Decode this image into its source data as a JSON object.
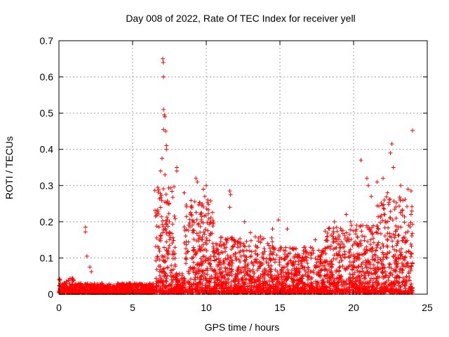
{
  "chart_data": {
    "type": "scatter",
    "title": "Day 008 of 2022, Rate Of TEC Index for receiver yell",
    "xlabel": "GPS time / hours",
    "ylabel": "ROTI / TECUs",
    "xlim": [
      0,
      25
    ],
    "ylim": [
      0,
      0.7
    ],
    "xticks": [
      "0",
      "5",
      "10",
      "15",
      "20",
      "25"
    ],
    "yticks": [
      "0",
      "0.1",
      "0.2",
      "0.3",
      "0.4",
      "0.5",
      "0.6",
      "0.7"
    ],
    "grid": true,
    "marker": "plus",
    "color": "#ff0000",
    "series": [
      {
        "points": [
          [
            1.8,
            0.185
          ],
          [
            1.8,
            0.172
          ],
          [
            1.9,
            0.105
          ],
          [
            2.1,
            0.075
          ],
          [
            2.2,
            0.062
          ],
          [
            6.9,
            0.34
          ],
          [
            7.0,
            0.375
          ],
          [
            7.05,
            0.65
          ],
          [
            7.08,
            0.64
          ],
          [
            7.1,
            0.6
          ],
          [
            7.1,
            0.51
          ],
          [
            7.15,
            0.495
          ],
          [
            7.2,
            0.49
          ],
          [
            7.1,
            0.455
          ],
          [
            7.25,
            0.45
          ],
          [
            7.3,
            0.41
          ],
          [
            7.3,
            0.4
          ],
          [
            7.2,
            0.33
          ],
          [
            7.4,
            0.25
          ],
          [
            7.5,
            0.2
          ],
          [
            8.0,
            0.35
          ],
          [
            8.0,
            0.34
          ],
          [
            8.5,
            0.28
          ],
          [
            9.3,
            0.32
          ],
          [
            9.4,
            0.31
          ],
          [
            9.8,
            0.29
          ],
          [
            9.9,
            0.27
          ],
          [
            10.0,
            0.3
          ],
          [
            10.1,
            0.26
          ],
          [
            9.6,
            0.22
          ],
          [
            11.6,
            0.285
          ],
          [
            11.65,
            0.275
          ],
          [
            11.6,
            0.24
          ],
          [
            12.6,
            0.2
          ],
          [
            13.0,
            0.17
          ],
          [
            14.5,
            0.18
          ],
          [
            14.9,
            0.205
          ],
          [
            15.5,
            0.18
          ],
          [
            16.7,
            0.13
          ],
          [
            17.4,
            0.15
          ],
          [
            18.7,
            0.2
          ],
          [
            19.5,
            0.22
          ],
          [
            19.8,
            0.2
          ],
          [
            20.2,
            0.19
          ],
          [
            20.5,
            0.37
          ],
          [
            20.9,
            0.32
          ],
          [
            21.0,
            0.3
          ],
          [
            21.2,
            0.27
          ],
          [
            21.6,
            0.31
          ],
          [
            22.0,
            0.32
          ],
          [
            22.3,
            0.28
          ],
          [
            22.5,
            0.39
          ],
          [
            22.6,
            0.415
          ],
          [
            22.7,
            0.35
          ],
          [
            23.2,
            0.3
          ],
          [
            23.7,
            0.29
          ],
          [
            23.9,
            0.285
          ],
          [
            24.0,
            0.452
          ]
        ],
        "dense_bands": [
          {
            "x_from": 0.0,
            "x_to": 1.0,
            "y_max": 0.045
          },
          {
            "x_from": 1.0,
            "x_to": 6.5,
            "y_max": 0.03
          },
          {
            "x_from": 6.5,
            "x_to": 7.9,
            "y_max": 0.3
          },
          {
            "x_from": 7.9,
            "x_to": 8.5,
            "y_max": 0.06
          },
          {
            "x_from": 8.5,
            "x_to": 10.5,
            "y_max": 0.26
          },
          {
            "x_from": 10.5,
            "x_to": 14.5,
            "y_max": 0.16
          },
          {
            "x_from": 14.5,
            "x_to": 18.0,
            "y_max": 0.13
          },
          {
            "x_from": 18.0,
            "x_to": 21.5,
            "y_max": 0.19
          },
          {
            "x_from": 21.5,
            "x_to": 24.0,
            "y_max": 0.27
          }
        ]
      }
    ]
  }
}
